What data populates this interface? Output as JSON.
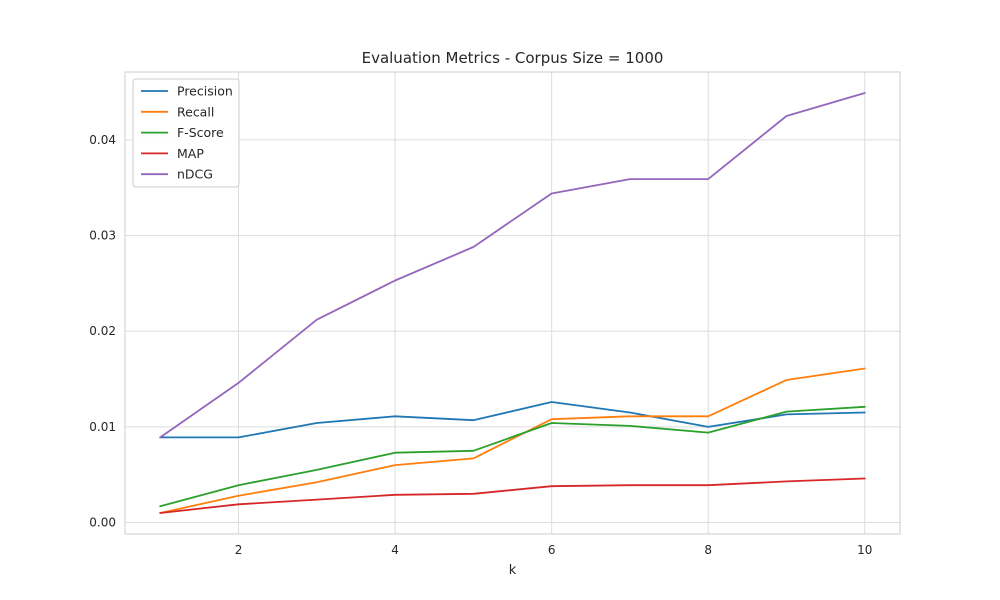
{
  "chart_data": {
    "type": "line",
    "title": "Evaluation Metrics - Corpus Size = 1000",
    "xlabel": "k",
    "ylabel": "",
    "x": [
      1,
      2,
      3,
      4,
      5,
      6,
      7,
      8,
      9,
      10
    ],
    "xlim": [
      0.55,
      10.45
    ],
    "ylim": [
      -0.0012,
      0.0471
    ],
    "xticks": [
      2,
      4,
      6,
      8,
      10
    ],
    "xtick_labels": [
      "2",
      "4",
      "6",
      "8",
      "10"
    ],
    "yticks": [
      0,
      0.01,
      0.02,
      0.03,
      0.04
    ],
    "ytick_labels": [
      "0.00",
      "0.01",
      "0.02",
      "0.03",
      "0.04"
    ],
    "grid": true,
    "legend_position": "top-left",
    "series": [
      {
        "name": "Precision",
        "color": "#1f77b4",
        "values": [
          0.0089,
          0.0089,
          0.0104,
          0.0111,
          0.0107,
          0.0126,
          0.0115,
          0.01,
          0.0113,
          0.0115
        ]
      },
      {
        "name": "Recall",
        "color": "#ff7f0e",
        "values": [
          0.001,
          0.0028,
          0.0042,
          0.006,
          0.0067,
          0.0108,
          0.0111,
          0.0111,
          0.0149,
          0.0161
        ]
      },
      {
        "name": "F-Score",
        "color": "#2ca02c",
        "values": [
          0.0017,
          0.0039,
          0.0055,
          0.0073,
          0.0075,
          0.0104,
          0.0101,
          0.0094,
          0.0116,
          0.0121
        ]
      },
      {
        "name": "MAP",
        "color": "#d62728",
        "values": [
          0.001,
          0.0019,
          0.0024,
          0.0029,
          0.003,
          0.0038,
          0.0039,
          0.0039,
          0.0043,
          0.0046
        ]
      },
      {
        "name": "nDCG",
        "color": "#9467bd",
        "values": [
          0.0089,
          0.0146,
          0.0212,
          0.0253,
          0.0288,
          0.0344,
          0.0359,
          0.0359,
          0.0425,
          0.0449
        ]
      }
    ]
  }
}
